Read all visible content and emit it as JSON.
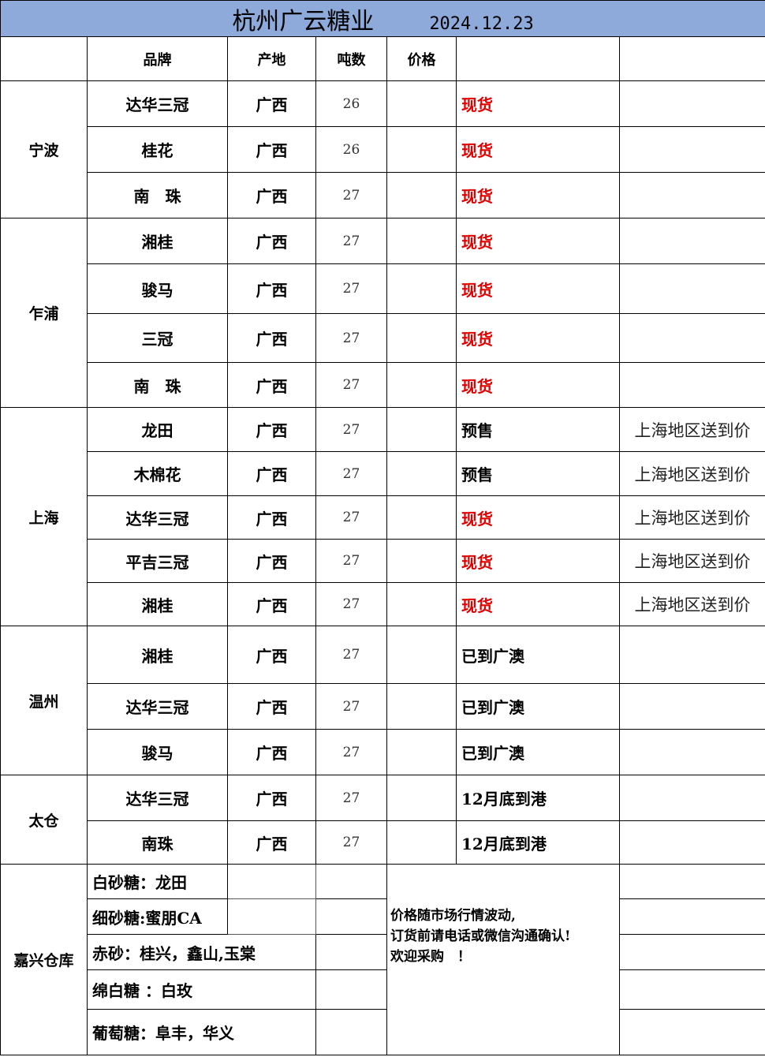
{
  "title": {
    "company": "杭州广云糖业",
    "date": "2024.12.23"
  },
  "header": {
    "brand": "品牌",
    "origin": "产地",
    "tons": "吨数",
    "price": "价格",
    "status": "",
    "note": ""
  },
  "colors": {
    "title_bg": "#8eaadb",
    "spot_red": "#e00000"
  },
  "groups": [
    {
      "region": "宁波",
      "items": [
        {
          "brand": "达华三冠",
          "origin": "广西",
          "tons": "26",
          "price": "",
          "status": "现货",
          "red": true,
          "note": ""
        },
        {
          "brand": "桂花",
          "origin": "广西",
          "tons": "26",
          "price": "",
          "status": "现货",
          "red": true,
          "note": ""
        },
        {
          "brand": "南　珠",
          "origin": "广西",
          "tons": "27",
          "price": "",
          "status": "现货",
          "red": true,
          "note": ""
        }
      ]
    },
    {
      "region": "乍浦",
      "items": [
        {
          "brand": "湘桂",
          "origin": "广西",
          "tons": "27",
          "price": "",
          "status": "现货",
          "red": true,
          "note": ""
        },
        {
          "brand": "骏马",
          "origin": "广西",
          "tons": "27",
          "price": "",
          "status": "现货",
          "red": true,
          "note": ""
        },
        {
          "brand": "三冠",
          "origin": "广西",
          "tons": "27",
          "price": "",
          "status": "现货",
          "red": true,
          "note": ""
        },
        {
          "brand": "南　珠",
          "origin": "广西",
          "tons": "27",
          "price": "",
          "status": "现货",
          "red": true,
          "note": ""
        }
      ]
    },
    {
      "region": "上海",
      "items": [
        {
          "brand": "龙田",
          "origin": "广西",
          "tons": "27",
          "price": "",
          "status": "预售",
          "red": false,
          "note": "上海地区送到价"
        },
        {
          "brand": "木棉花",
          "origin": "广西",
          "tons": "27",
          "price": "",
          "status": "预售",
          "red": false,
          "note": "上海地区送到价"
        },
        {
          "brand": "达华三冠",
          "origin": "广西",
          "tons": "27",
          "price": "",
          "status": "现货",
          "red": true,
          "note": "上海地区送到价"
        },
        {
          "brand": "平吉三冠",
          "origin": "广西",
          "tons": "27",
          "price": "",
          "status": "现货",
          "red": true,
          "note": "上海地区送到价"
        },
        {
          "brand": "湘桂",
          "origin": "广西",
          "tons": "27",
          "price": "",
          "status": "现货",
          "red": true,
          "note": "上海地区送到价"
        }
      ]
    },
    {
      "region": "温州",
      "items": [
        {
          "brand": "湘桂",
          "origin": "广西",
          "tons": "27",
          "price": "",
          "status": "已到广澳",
          "red": false,
          "note": ""
        },
        {
          "brand": "达华三冠",
          "origin": "广西",
          "tons": "27",
          "price": "",
          "status": "已到广澳",
          "red": false,
          "note": ""
        },
        {
          "brand": "骏马",
          "origin": "广西",
          "tons": "27",
          "price": "",
          "status": "已到广澳",
          "red": false,
          "note": ""
        }
      ]
    },
    {
      "region": "太仓",
      "items": [
        {
          "brand": "达华三冠",
          "origin": "广西",
          "tons": "27",
          "price": "",
          "status": "12月底到港",
          "red": false,
          "note": ""
        },
        {
          "brand": "南珠",
          "origin": "广西",
          "tons": "27",
          "price": "",
          "status": "12月底到港",
          "red": false,
          "note": ""
        }
      ]
    }
  ],
  "warehouse": {
    "region": "嘉兴仓库",
    "items": [
      "白砂糖：龙田",
      "细砂糖:蜜朋CA",
      "赤砂：桂兴，鑫山,玉棠",
      "绵白糖 ：白玫",
      "葡萄糖：阜丰，华义"
    ],
    "notice": [
      "价格随市场行情波动,",
      "订货前请电话或微信沟通确认!",
      "欢迎采购　！"
    ]
  }
}
